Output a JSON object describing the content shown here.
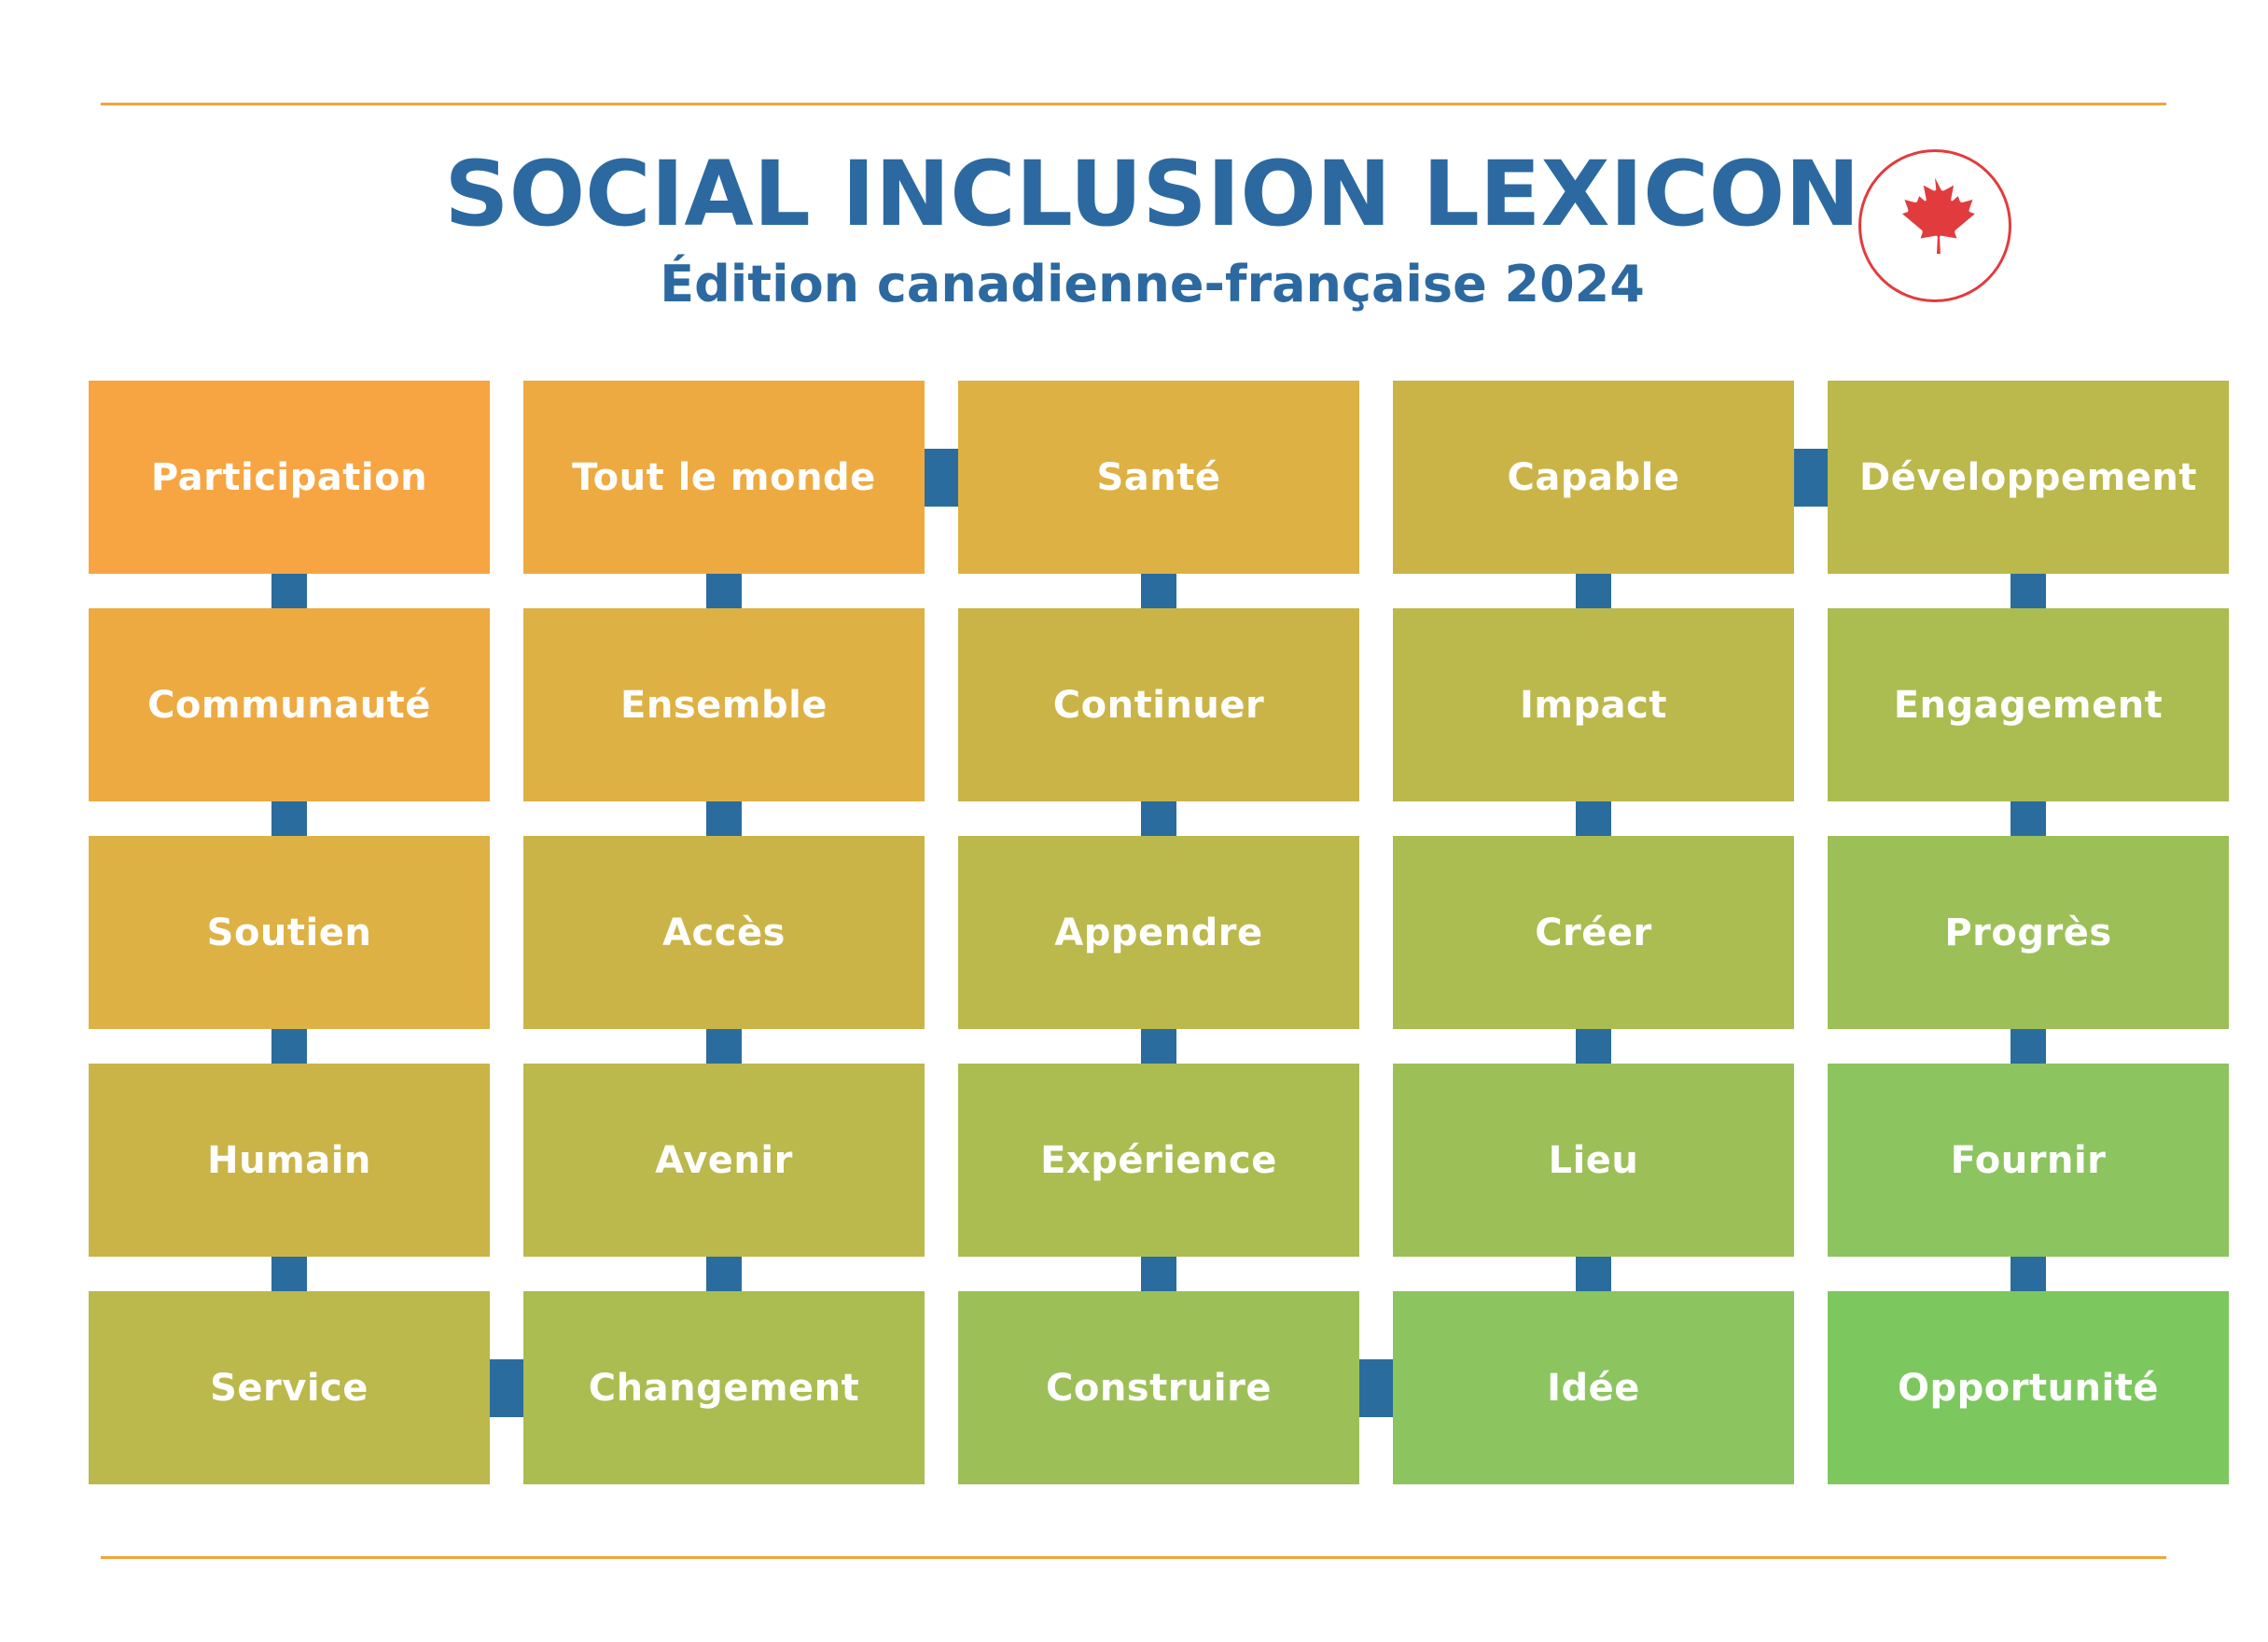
{
  "header": {
    "title": "SOCIAL INCLUSION LEXICON",
    "subtitle": "Édition canadienne-française 2024",
    "logo_icon": "canada-maple-leaf"
  },
  "grid": {
    "rows": [
      [
        "Participation",
        "Tout le monde",
        "Santé",
        "Capable",
        "Développement"
      ],
      [
        "Communauté",
        "Ensemble",
        "Continuer",
        "Impact",
        "Engagement"
      ],
      [
        "Soutien",
        "Accès",
        "Appendre",
        "Créer",
        "Progrès"
      ],
      [
        "Humain",
        "Avenir",
        "Expérience",
        "Lieu",
        "Fournir"
      ],
      [
        "Service",
        "Changement",
        "Construire",
        "Idée",
        "Opportunité"
      ]
    ],
    "diagonal_palette": [
      "#F7A542",
      "#EDAA41",
      "#DDB143",
      "#CBB447",
      "#BBB84C",
      "#ABBC51",
      "#9CC057",
      "#8CC45F",
      "#7CC85E"
    ]
  },
  "connectors": {
    "vertical": [
      [
        0,
        0
      ],
      [
        1,
        0
      ],
      [
        2,
        0
      ],
      [
        3,
        0
      ],
      [
        4,
        0
      ],
      [
        0,
        1
      ],
      [
        1,
        1
      ],
      [
        2,
        1
      ],
      [
        3,
        1
      ],
      [
        4,
        1
      ],
      [
        0,
        2
      ],
      [
        1,
        2
      ],
      [
        2,
        2
      ],
      [
        3,
        2
      ],
      [
        4,
        2
      ],
      [
        0,
        3
      ],
      [
        1,
        3
      ],
      [
        2,
        3
      ],
      [
        3,
        3
      ],
      [
        4,
        3
      ]
    ],
    "horizontal": [
      {
        "row": 0,
        "after_col": 1
      },
      {
        "row": 0,
        "after_col": 3
      },
      {
        "row": 4,
        "after_col": 0
      },
      {
        "row": 4,
        "after_col": 2
      }
    ]
  },
  "colors": {
    "title_blue": "#2C69A0",
    "connector_blue": "#2B6C9E",
    "rule_orange": "#F2A43D",
    "leaf_red": "#E23B3E",
    "tile_text": "#ffffff",
    "background": "#ffffff"
  }
}
